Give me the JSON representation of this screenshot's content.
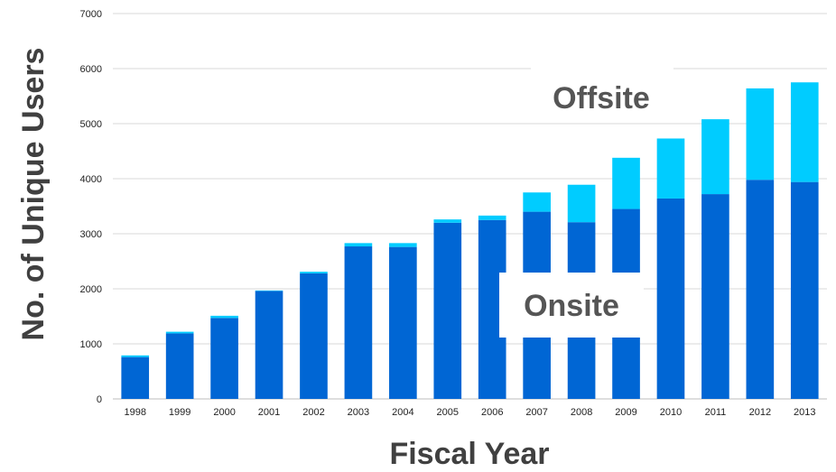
{
  "chart_data": {
    "type": "bar",
    "stacked": true,
    "title": "",
    "xlabel": "Fiscal Year",
    "ylabel": "No. of Unique Users",
    "ylim": [
      0,
      7000
    ],
    "yticks": [
      0,
      1000,
      2000,
      3000,
      4000,
      5000,
      6000,
      7000
    ],
    "grid": true,
    "legend": "none",
    "categories": [
      "1998",
      "1999",
      "2000",
      "2001",
      "2002",
      "2003",
      "2004",
      "2005",
      "2006",
      "2007",
      "2008",
      "2009",
      "2010",
      "2011",
      "2012",
      "2013"
    ],
    "series": [
      {
        "name": "Onsite",
        "color": "#0066d4",
        "values": [
          760,
          1190,
          1470,
          1960,
          2280,
          2770,
          2760,
          3200,
          3250,
          3400,
          3210,
          3450,
          3640,
          3720,
          3980,
          3940
        ]
      },
      {
        "name": "Offsite",
        "color": "#00ccff",
        "values": [
          30,
          30,
          40,
          10,
          30,
          60,
          70,
          60,
          80,
          350,
          680,
          930,
          1090,
          1360,
          1660,
          1810
        ]
      }
    ],
    "annotations": [
      "Offsite",
      "Onsite"
    ]
  }
}
